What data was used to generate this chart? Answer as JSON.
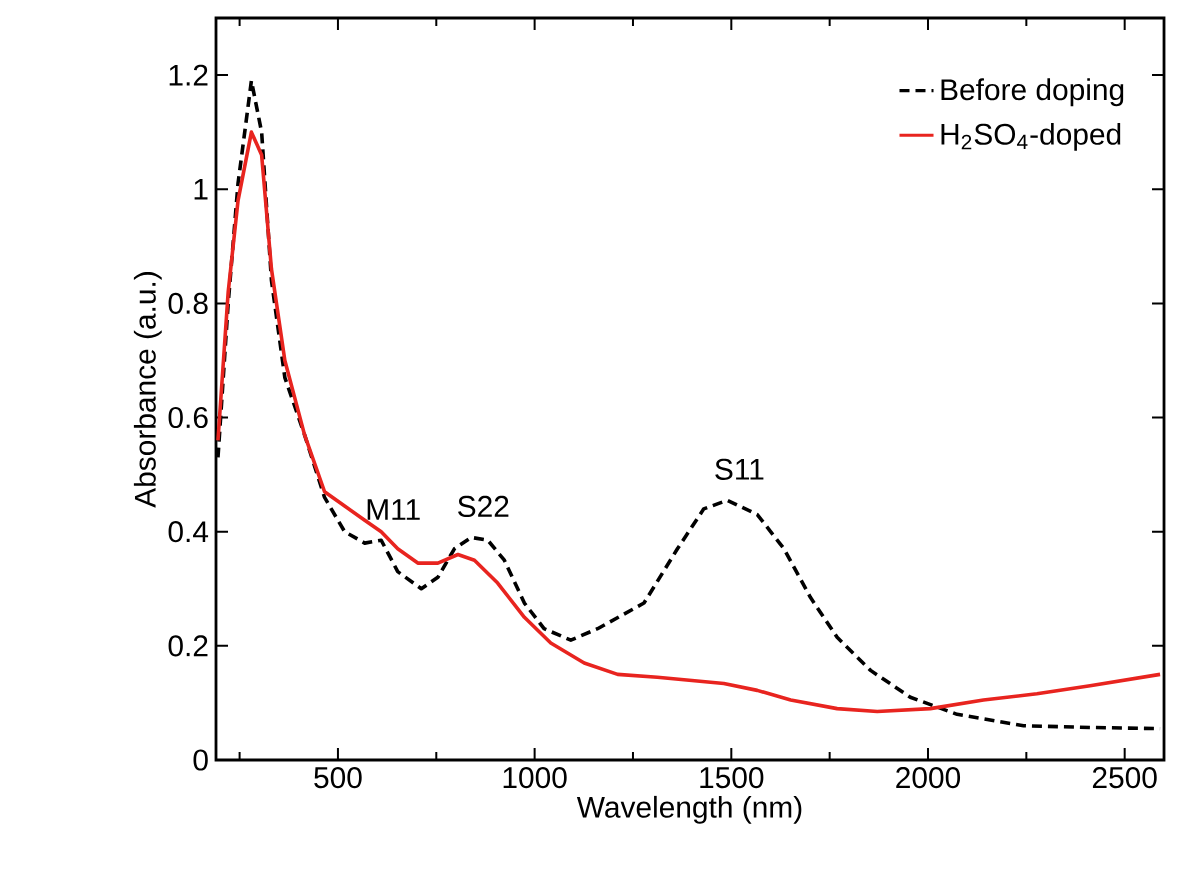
{
  "chart_data": {
    "type": "line",
    "xlabel": "Wavelength (nm)",
    "ylabel": "Absorbance (a.u.)",
    "xlim": [
      190,
      2600
    ],
    "ylim": [
      0,
      1.3
    ],
    "xticks": [
      {
        "value": 250,
        "label": null
      },
      500,
      {
        "value": 750,
        "label": null
      },
      1000,
      {
        "value": 1250,
        "label": null
      },
      1500,
      {
        "value": 1750,
        "label": null
      },
      2000,
      {
        "value": 2250,
        "label": null
      },
      2500
    ],
    "yticks": [
      0,
      0.2,
      0.4,
      0.6,
      0.8,
      1,
      1.2
    ],
    "legend": "top right",
    "grid": false,
    "marker": "none",
    "series": [
      {
        "name": "Before doping",
        "color": "#000000",
        "line_style": "dashed",
        "x": [
          195,
          221,
          246,
          280,
          306,
          331,
          365,
          415,
          466,
          517,
          568,
          610,
          652,
          712,
          754,
          796,
          839,
          881,
          923,
          974,
          1024,
          1092,
          1160,
          1278,
          1363,
          1430,
          1490,
          1566,
          1634,
          1701,
          1769,
          1854,
          1955,
          2074,
          2243,
          2412,
          2590
        ],
        "values": [
          0.53,
          0.8,
          1.01,
          1.19,
          1.1,
          0.84,
          0.67,
          0.57,
          0.46,
          0.4,
          0.38,
          0.385,
          0.33,
          0.3,
          0.32,
          0.37,
          0.39,
          0.385,
          0.35,
          0.275,
          0.23,
          0.21,
          0.23,
          0.275,
          0.37,
          0.44,
          0.455,
          0.43,
          0.37,
          0.285,
          0.215,
          0.157,
          0.11,
          0.08,
          0.06,
          0.057,
          0.055
        ]
      },
      {
        "name": "H$_{2}$SO$_{4}$-doped",
        "color": "#e8241f",
        "line_style": "solid",
        "x": [
          195,
          221,
          246,
          280,
          306,
          331,
          365,
          415,
          466,
          517,
          568,
          610,
          652,
          703,
          754,
          805,
          847,
          906,
          974,
          1041,
          1126,
          1211,
          1312,
          1481,
          1566,
          1651,
          1769,
          1871,
          2006,
          2141,
          2277,
          2412,
          2590
        ],
        "values": [
          0.56,
          0.82,
          0.98,
          1.1,
          1.06,
          0.86,
          0.7,
          0.57,
          0.47,
          0.445,
          0.42,
          0.4,
          0.37,
          0.345,
          0.345,
          0.36,
          0.35,
          0.31,
          0.25,
          0.205,
          0.17,
          0.15,
          0.145,
          0.134,
          0.122,
          0.105,
          0.09,
          0.085,
          0.09,
          0.105,
          0.116,
          0.13,
          0.15
        ]
      }
    ],
    "annotations": [
      {
        "text": "M11",
        "x": 610,
        "y": 0.385
      },
      {
        "text": "S22",
        "x": 839,
        "y": 0.39
      },
      {
        "text": "S11",
        "x": 1490,
        "y": 0.455
      }
    ]
  }
}
